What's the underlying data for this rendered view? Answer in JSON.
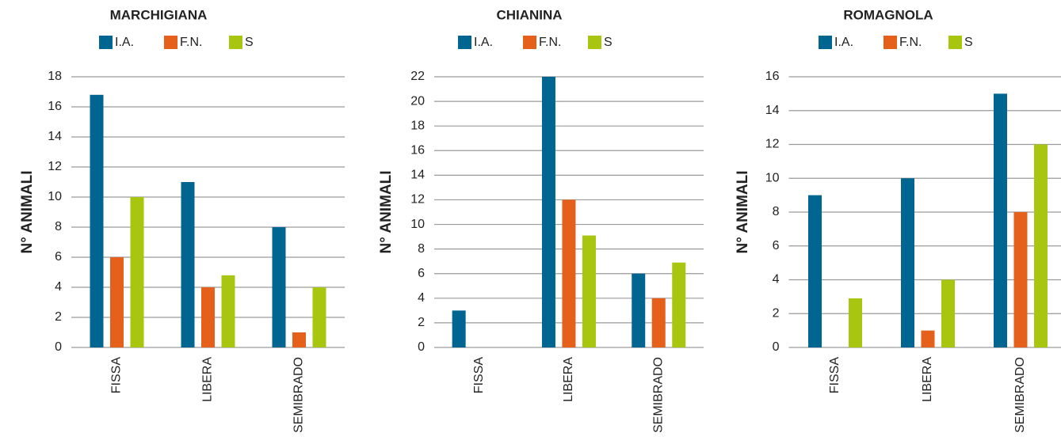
{
  "chart_data": [
    {
      "type": "bar",
      "title": "MARCHIGIANA",
      "y_label": "N° ANIMALI",
      "categories": [
        "FISSA",
        "LIBERA",
        "SEMIBRADO"
      ],
      "series": [
        {
          "name": "I.A.",
          "color": "#006591",
          "values": [
            16.8,
            11,
            8
          ]
        },
        {
          "name": "F.N.",
          "color": "#e5601a",
          "values": [
            6,
            4,
            1
          ]
        },
        {
          "name": "S",
          "color": "#a8c60f",
          "values": [
            10,
            4.8,
            4
          ]
        }
      ],
      "ylim": [
        0,
        18
      ],
      "yticks": [
        0,
        2,
        4,
        6,
        8,
        10,
        12,
        14,
        16,
        18
      ],
      "grid": true
    },
    {
      "type": "bar",
      "title": "CHIANINA",
      "y_label": "N° ANIMALI",
      "categories": [
        "FISSA",
        "LIBERA",
        "SEMIBRADO"
      ],
      "series": [
        {
          "name": "I.A.",
          "color": "#006591",
          "values": [
            3,
            22,
            6
          ]
        },
        {
          "name": "F.N.",
          "color": "#e5601a",
          "values": [
            0,
            12,
            4
          ]
        },
        {
          "name": "S",
          "color": "#a8c60f",
          "values": [
            0,
            9.1,
            6.9
          ]
        }
      ],
      "ylim": [
        0,
        22
      ],
      "yticks": [
        0,
        2,
        4,
        6,
        8,
        10,
        12,
        14,
        16,
        18,
        20,
        22
      ],
      "grid": true
    },
    {
      "type": "bar",
      "title": "ROMAGNOLA",
      "y_label": "N° ANIMALI",
      "categories": [
        "FISSA",
        "LIBERA",
        "SEMIBRADO"
      ],
      "series": [
        {
          "name": "I.A.",
          "color": "#006591",
          "values": [
            9,
            10,
            15
          ]
        },
        {
          "name": "F.N.",
          "color": "#e5601a",
          "values": [
            0,
            1,
            8
          ]
        },
        {
          "name": "S",
          "color": "#a8c60f",
          "values": [
            2.9,
            4,
            12
          ]
        }
      ],
      "ylim": [
        0,
        16
      ],
      "yticks": [
        0,
        2,
        4,
        6,
        8,
        10,
        12,
        14,
        16
      ],
      "grid": true
    }
  ]
}
